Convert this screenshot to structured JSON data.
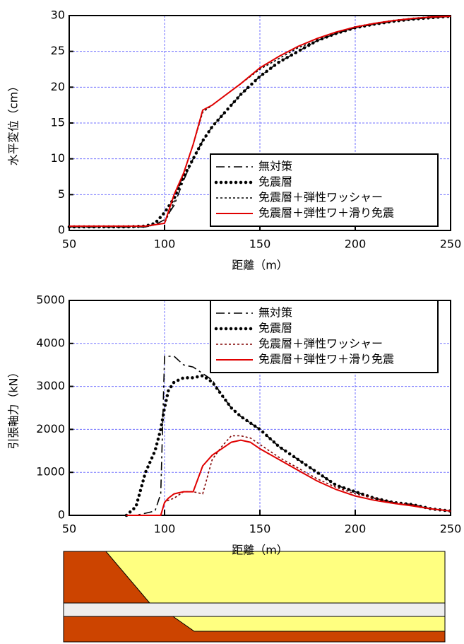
{
  "chart_data": [
    {
      "type": "line",
      "xlabel": "距離（m）",
      "ylabel": "水平変位（cm）",
      "x": [
        50,
        60,
        70,
        80,
        90,
        95,
        100,
        105,
        110,
        115,
        120,
        125,
        130,
        140,
        150,
        160,
        170,
        180,
        190,
        200,
        210,
        220,
        230,
        240,
        250
      ],
      "series": [
        {
          "name": "無対策",
          "color": "#000000",
          "style": "dashdot",
          "values": [
            0.5,
            0.5,
            0.5,
            0.5,
            0.5,
            0.8,
            1.5,
            3.5,
            7,
            10,
            12.5,
            14.5,
            16,
            19,
            21.5,
            23.5,
            25,
            26.5,
            27.5,
            28.3,
            28.8,
            29.2,
            29.5,
            29.7,
            29.9
          ]
        },
        {
          "name": "免震層",
          "color": "#000000",
          "style": "dot",
          "values": [
            0.5,
            0.5,
            0.5,
            0.5,
            0.6,
            1,
            2.5,
            4.5,
            7.5,
            10,
            12.5,
            14.5,
            16,
            19,
            21.5,
            23.5,
            25,
            26.5,
            27.5,
            28.3,
            28.8,
            29.2,
            29.5,
            29.7,
            29.9
          ]
        },
        {
          "name": "免震層＋弾性ワッシャー",
          "color": "#000000",
          "style": "densedot",
          "values": [
            0.5,
            0.5,
            0.5,
            0.5,
            0.5,
            0.8,
            1,
            4,
            8,
            12,
            16.5,
            17.5,
            18.5,
            20.5,
            22.5,
            24,
            25.5,
            26.5,
            27.5,
            28.3,
            28.8,
            29.2,
            29.5,
            29.7,
            29.9
          ]
        },
        {
          "name": "免震層＋弾性ワ＋滑り免震",
          "color": "#e00000",
          "style": "solid",
          "values": [
            0.6,
            0.6,
            0.6,
            0.6,
            0.6,
            0.8,
            1,
            5,
            8,
            12,
            16.8,
            17.5,
            18.5,
            20.5,
            22.7,
            24.3,
            25.7,
            26.8,
            27.7,
            28.4,
            28.9,
            29.3,
            29.6,
            29.8,
            29.9
          ]
        }
      ],
      "xlim": [
        50,
        250
      ],
      "ylim": [
        0,
        30
      ],
      "xticks": [
        50,
        100,
        150,
        200,
        250
      ],
      "yticks": [
        0,
        5,
        10,
        15,
        20,
        25,
        30
      ],
      "grid": true,
      "legend": "lower right"
    },
    {
      "type": "line",
      "xlabel": "距離（m）",
      "ylabel": "引張軸力（kN）",
      "x": [
        80,
        85,
        90,
        95,
        98,
        100,
        102,
        105,
        110,
        115,
        120,
        125,
        130,
        135,
        140,
        145,
        150,
        160,
        170,
        180,
        190,
        200,
        210,
        220,
        230,
        240,
        250
      ],
      "series": [
        {
          "name": "無対策",
          "color": "#000000",
          "style": "dashdot",
          "values": [
            0,
            0,
            50,
            100,
            500,
            3700,
            3700,
            3700,
            3500,
            3450,
            3300,
            3150,
            2800,
            2500,
            2300,
            2150,
            2000,
            1600,
            1300,
            1000,
            700,
            550,
            400,
            300,
            250,
            150,
            100
          ]
        },
        {
          "name": "免震層",
          "color": "#000000",
          "style": "dot",
          "values": [
            0,
            200,
            1000,
            1500,
            2000,
            2500,
            2900,
            3100,
            3200,
            3200,
            3250,
            3100,
            2800,
            2500,
            2300,
            2150,
            2000,
            1600,
            1300,
            1000,
            700,
            550,
            400,
            300,
            250,
            150,
            100
          ]
        },
        {
          "name": "免震層＋弾性ワッシャー",
          "color": "#800000",
          "style": "densedot",
          "values": [
            0,
            0,
            0,
            0,
            0,
            300,
            350,
            400,
            550,
            550,
            500,
            1300,
            1600,
            1850,
            1850,
            1800,
            1650,
            1350,
            1100,
            850,
            650,
            500,
            400,
            300,
            250,
            150,
            100
          ]
        },
        {
          "name": "免震層＋弾性ワ＋滑り免震",
          "color": "#e00000",
          "style": "solid",
          "values": [
            0,
            0,
            0,
            0,
            0,
            300,
            400,
            500,
            550,
            550,
            1150,
            1400,
            1550,
            1700,
            1750,
            1700,
            1550,
            1300,
            1050,
            800,
            600,
            450,
            350,
            280,
            220,
            150,
            100
          ]
        }
      ],
      "xlim": [
        50,
        250
      ],
      "ylim": [
        0,
        5000
      ],
      "xticks": [
        50,
        100,
        150,
        200,
        250
      ],
      "yticks": [
        0,
        1000,
        2000,
        3000,
        4000,
        5000
      ],
      "grid": true,
      "legend": "upper right"
    }
  ]
}
